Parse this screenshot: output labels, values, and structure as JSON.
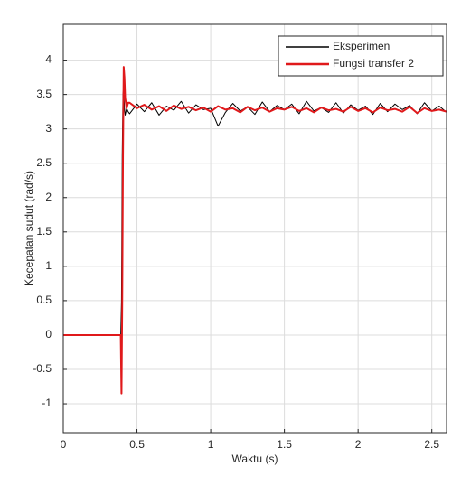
{
  "chart_data": {
    "type": "line",
    "xlabel": "Waktu (s)",
    "ylabel": "Kecepatan sudut (rad/s)",
    "x": [
      0,
      0.39,
      0.395,
      0.4,
      0.405,
      0.41,
      0.415,
      0.42,
      0.43,
      0.44,
      0.45,
      0.5,
      0.55,
      0.6,
      0.65,
      0.7,
      0.75,
      0.8,
      0.85,
      0.9,
      0.95,
      1.0,
      1.05,
      1.1,
      1.15,
      1.2,
      1.25,
      1.3,
      1.35,
      1.4,
      1.45,
      1.5,
      1.55,
      1.6,
      1.65,
      1.7,
      1.75,
      1.8,
      1.85,
      1.9,
      1.95,
      2.0,
      2.05,
      2.1,
      2.15,
      2.2,
      2.25,
      2.3,
      2.35,
      2.4,
      2.45,
      2.5,
      2.55,
      2.6
    ],
    "series": [
      {
        "name": "Eksperimen",
        "color": "#000000",
        "width": 1,
        "values": [
          0,
          0,
          0.5,
          2.6,
          3.5,
          3.6,
          3.3,
          3.2,
          3.3,
          3.25,
          3.22,
          3.36,
          3.25,
          3.38,
          3.2,
          3.33,
          3.27,
          3.4,
          3.23,
          3.35,
          3.28,
          3.3,
          3.04,
          3.24,
          3.37,
          3.26,
          3.32,
          3.21,
          3.39,
          3.25,
          3.34,
          3.28,
          3.36,
          3.22,
          3.4,
          3.26,
          3.31,
          3.24,
          3.38,
          3.23,
          3.35,
          3.27,
          3.33,
          3.21,
          3.37,
          3.25,
          3.36,
          3.28,
          3.34,
          3.22,
          3.38,
          3.26,
          3.33,
          3.24
        ]
      },
      {
        "name": "Fungsi transfer 2",
        "color": "#e0191b",
        "width": 2,
        "values": [
          0,
          0,
          -0.85,
          0.5,
          2.6,
          3.9,
          3.75,
          3.45,
          3.3,
          3.38,
          3.38,
          3.3,
          3.35,
          3.28,
          3.33,
          3.26,
          3.34,
          3.29,
          3.32,
          3.27,
          3.31,
          3.25,
          3.33,
          3.28,
          3.3,
          3.24,
          3.32,
          3.27,
          3.31,
          3.25,
          3.3,
          3.28,
          3.32,
          3.26,
          3.3,
          3.24,
          3.31,
          3.27,
          3.29,
          3.25,
          3.32,
          3.26,
          3.3,
          3.24,
          3.31,
          3.27,
          3.29,
          3.25,
          3.32,
          3.23,
          3.3,
          3.26,
          3.28,
          3.25
        ]
      }
    ],
    "xlim": [
      0,
      2.6
    ],
    "ylim": [
      -1.42,
      4.52
    ],
    "xticks": [
      0,
      0.5,
      1,
      1.5,
      2,
      2.5
    ],
    "yticks": [
      -1,
      -0.5,
      0,
      0.5,
      1,
      1.5,
      2,
      2.5,
      3,
      3.5,
      4
    ],
    "grid": true,
    "legend": "top-right"
  }
}
